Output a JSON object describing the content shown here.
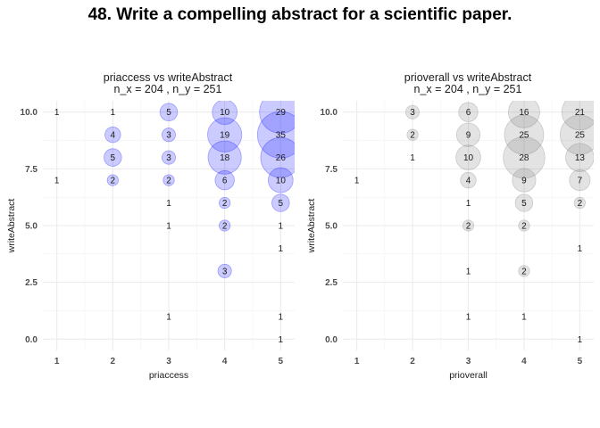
{
  "title": "48. Write a compelling abstract for a scientific paper.",
  "chart_data": [
    {
      "type": "scatter",
      "subtype": "bubble",
      "title": "priaccess vs writeAbstract",
      "subtitle": "n_x = 204 , n_y = 251",
      "xlabel": "priaccess",
      "ylabel": "writeAbstract",
      "xlim": [
        0.75,
        5.25
      ],
      "ylim": [
        -0.5,
        10.5
      ],
      "xticks": [
        1,
        2,
        3,
        4,
        5
      ],
      "yticks": [
        0.0,
        2.5,
        5.0,
        7.5,
        10.0
      ],
      "ytick_labels": [
        "0.0",
        "2.5",
        "5.0",
        "7.5",
        "10.0"
      ],
      "grid": true,
      "color": "#1414ff",
      "points": [
        {
          "x": 1,
          "y": 10,
          "n": 1
        },
        {
          "x": 1,
          "y": 7,
          "n": 1
        },
        {
          "x": 2,
          "y": 10,
          "n": 1
        },
        {
          "x": 2,
          "y": 9,
          "n": 4
        },
        {
          "x": 2,
          "y": 8,
          "n": 5
        },
        {
          "x": 2,
          "y": 7,
          "n": 2
        },
        {
          "x": 3,
          "y": 10,
          "n": 5
        },
        {
          "x": 3,
          "y": 9,
          "n": 3
        },
        {
          "x": 3,
          "y": 8,
          "n": 3
        },
        {
          "x": 3,
          "y": 7,
          "n": 2
        },
        {
          "x": 3,
          "y": 6,
          "n": 1
        },
        {
          "x": 3,
          "y": 5,
          "n": 1
        },
        {
          "x": 3,
          "y": 1,
          "n": 1
        },
        {
          "x": 4,
          "y": 10,
          "n": 10
        },
        {
          "x": 4,
          "y": 9,
          "n": 19
        },
        {
          "x": 4,
          "y": 8,
          "n": 18
        },
        {
          "x": 4,
          "y": 7,
          "n": 6
        },
        {
          "x": 4,
          "y": 6,
          "n": 2
        },
        {
          "x": 4,
          "y": 5,
          "n": 2
        },
        {
          "x": 4,
          "y": 3,
          "n": 3
        },
        {
          "x": 5,
          "y": 10,
          "n": 29
        },
        {
          "x": 5,
          "y": 9,
          "n": 35
        },
        {
          "x": 5,
          "y": 8,
          "n": 26
        },
        {
          "x": 5,
          "y": 7,
          "n": 10
        },
        {
          "x": 5,
          "y": 6,
          "n": 5
        },
        {
          "x": 5,
          "y": 5,
          "n": 1
        },
        {
          "x": 5,
          "y": 4,
          "n": 1
        },
        {
          "x": 5,
          "y": 1,
          "n": 1
        },
        {
          "x": 5,
          "y": 0,
          "n": 1
        }
      ]
    },
    {
      "type": "scatter",
      "subtype": "bubble",
      "title": "prioverall vs writeAbstract",
      "subtitle": "n_x = 204 , n_y = 251",
      "xlabel": "prioverall",
      "ylabel": "writeAbstract",
      "xlim": [
        0.75,
        5.25
      ],
      "ylim": [
        -0.5,
        10.5
      ],
      "xticks": [
        1,
        2,
        3,
        4,
        5
      ],
      "yticks": [
        0.0,
        2.5,
        5.0,
        7.5,
        10.0
      ],
      "ytick_labels": [
        "0.0",
        "2.5",
        "5.0",
        "7.5",
        "10.0"
      ],
      "grid": true,
      "color": "#808080",
      "points": [
        {
          "x": 1,
          "y": 7,
          "n": 1
        },
        {
          "x": 2,
          "y": 10,
          "n": 3
        },
        {
          "x": 2,
          "y": 9,
          "n": 2
        },
        {
          "x": 2,
          "y": 8,
          "n": 1
        },
        {
          "x": 3,
          "y": 10,
          "n": 6
        },
        {
          "x": 3,
          "y": 9,
          "n": 9
        },
        {
          "x": 3,
          "y": 8,
          "n": 10
        },
        {
          "x": 3,
          "y": 7,
          "n": 4
        },
        {
          "x": 3,
          "y": 6,
          "n": 1
        },
        {
          "x": 3,
          "y": 5,
          "n": 2
        },
        {
          "x": 3,
          "y": 3,
          "n": 1
        },
        {
          "x": 3,
          "y": 1,
          "n": 1
        },
        {
          "x": 4,
          "y": 10,
          "n": 16
        },
        {
          "x": 4,
          "y": 9,
          "n": 25
        },
        {
          "x": 4,
          "y": 8,
          "n": 28
        },
        {
          "x": 4,
          "y": 7,
          "n": 9
        },
        {
          "x": 4,
          "y": 6,
          "n": 5
        },
        {
          "x": 4,
          "y": 5,
          "n": 2
        },
        {
          "x": 4,
          "y": 3,
          "n": 2
        },
        {
          "x": 4,
          "y": 1,
          "n": 1
        },
        {
          "x": 5,
          "y": 10,
          "n": 21
        },
        {
          "x": 5,
          "y": 9,
          "n": 25
        },
        {
          "x": 5,
          "y": 8,
          "n": 13
        },
        {
          "x": 5,
          "y": 7,
          "n": 7
        },
        {
          "x": 5,
          "y": 6,
          "n": 2
        },
        {
          "x": 5,
          "y": 4,
          "n": 1
        },
        {
          "x": 5,
          "y": 0,
          "n": 1
        }
      ]
    }
  ]
}
